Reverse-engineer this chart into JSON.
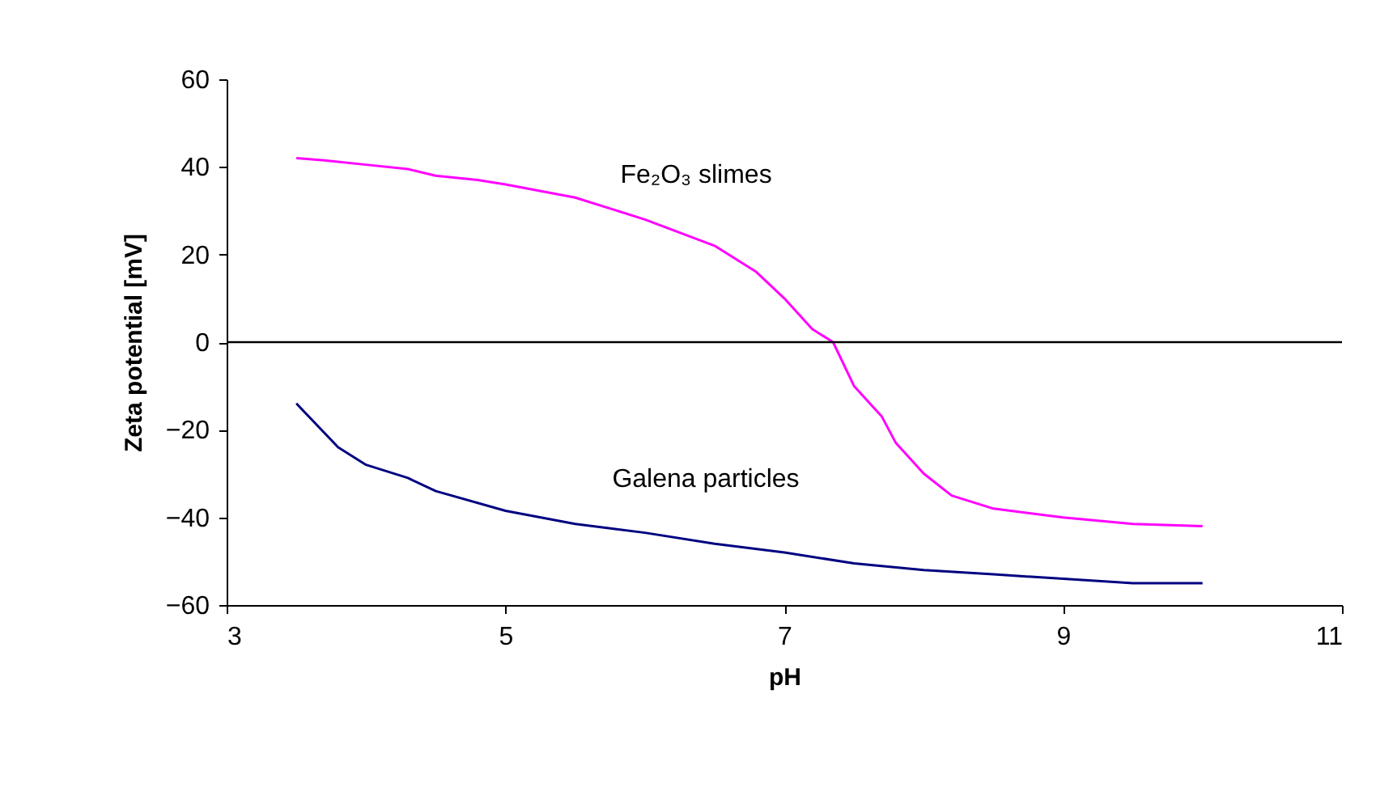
{
  "chart_data": {
    "type": "line",
    "xlabel": "pH",
    "ylabel": "Zeta potential [mV]",
    "xlim": [
      3,
      11
    ],
    "xticks": [
      3,
      5,
      7,
      9,
      11
    ],
    "ylim": [
      -60,
      60
    ],
    "yticks": [
      -60,
      -40,
      -20,
      0,
      20,
      40,
      60
    ],
    "grid": false,
    "marker": "none",
    "line_style": "solid",
    "series": [
      {
        "color": "#ff00ff",
        "x": [
          3.5,
          3.7,
          4,
          4.3,
          4.5,
          4.8,
          5,
          5.5,
          6,
          6.5,
          6.8,
          7,
          7.2,
          7.35,
          7.5,
          7.7,
          7.8,
          8,
          8.2,
          8.5,
          9,
          9.5,
          10
        ],
        "values": [
          42,
          41.5,
          40.5,
          39.5,
          38,
          37,
          36,
          33,
          28,
          22,
          16,
          10,
          3,
          0,
          -10,
          -17,
          -23,
          -30,
          -35,
          -38,
          -40,
          -41.5,
          -42
        ]
      },
      {
        "color": "#000080",
        "x": [
          3.5,
          3.8,
          4,
          4.3,
          4.5,
          5,
          5.5,
          6,
          6.5,
          7,
          7.5,
          8,
          8.5,
          9,
          9.5,
          10
        ],
        "values": [
          -14,
          -24,
          -28,
          -31,
          -34,
          -38.5,
          -41.5,
          -43.5,
          -46,
          -48,
          -50.5,
          -52,
          -53,
          -54,
          -55,
          -55
        ]
      }
    ],
    "ref_lines": [
      {
        "axis": "y",
        "value": 0,
        "color": "#000000"
      }
    ],
    "annotations": [
      "Fe₂O₃ slimes",
      "Galena particles"
    ]
  }
}
